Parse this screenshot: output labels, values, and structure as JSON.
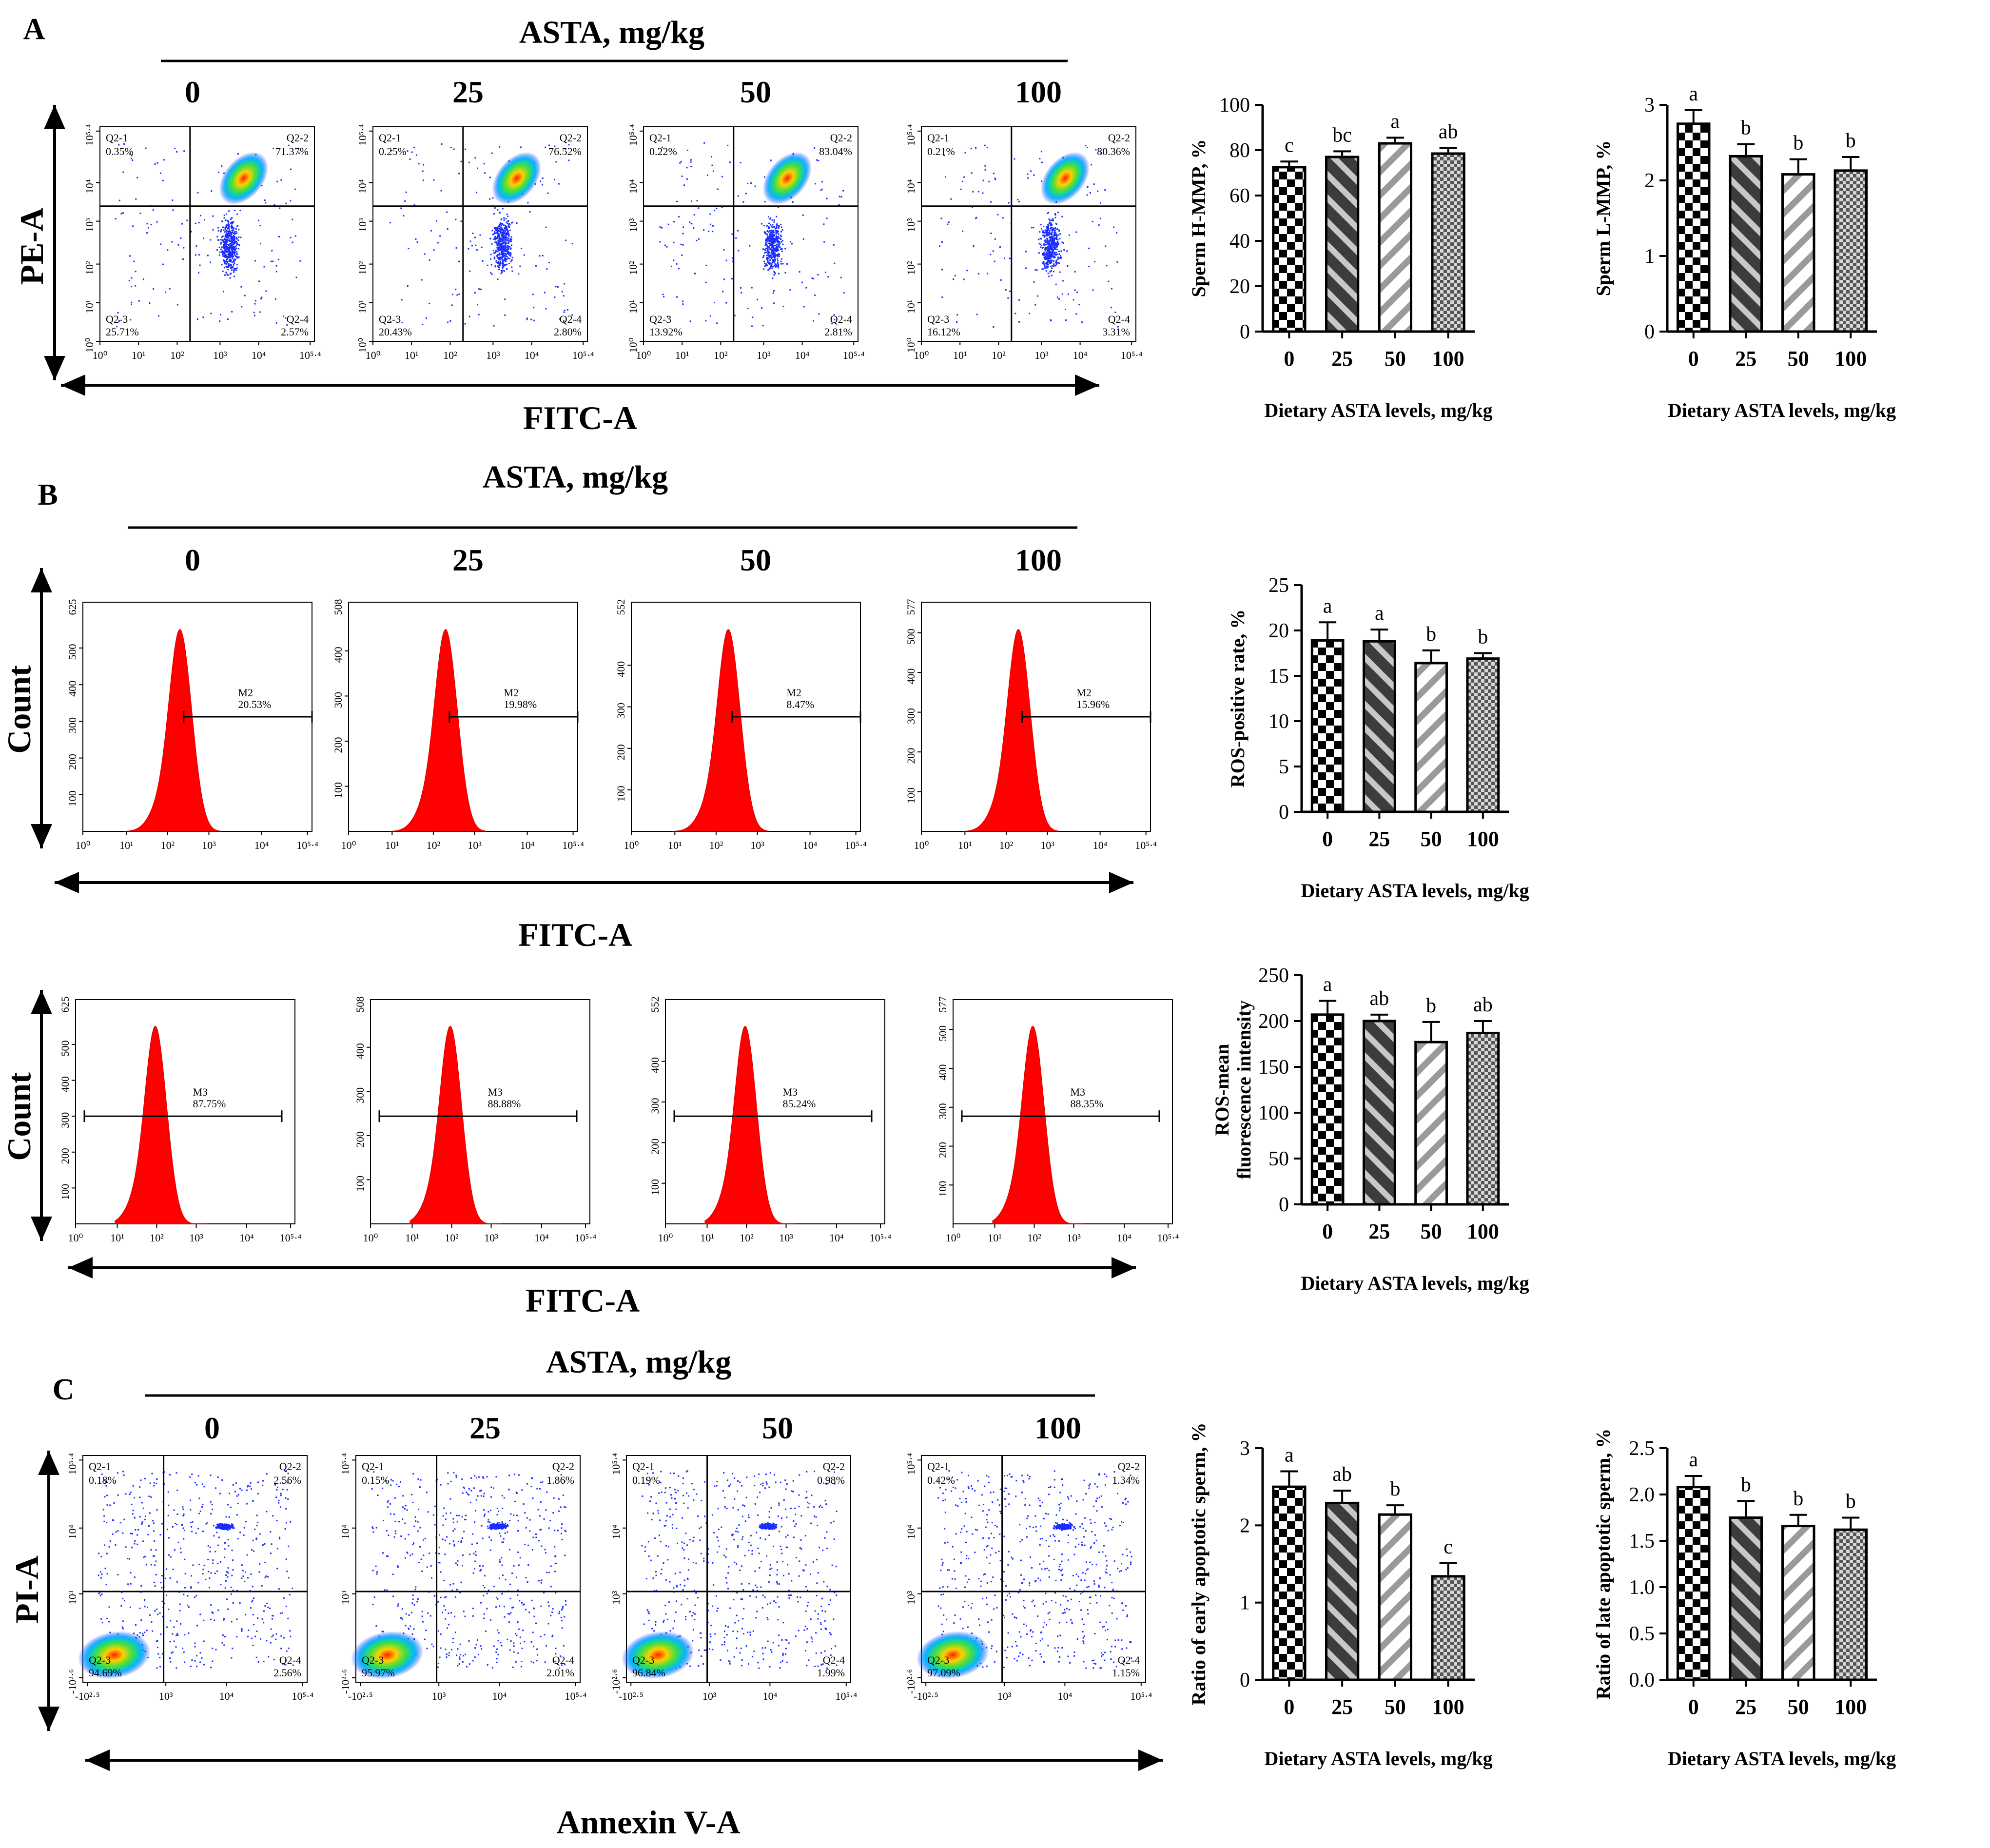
{
  "panel_labels": [
    "A",
    "B",
    "C"
  ],
  "header": "ASTA, mg/kg",
  "groups": [
    "0",
    "25",
    "50",
    "100"
  ],
  "axis_titles": {
    "pe": "PE-A",
    "fitc": "FITC-A",
    "count": "Count",
    "pi": "PI-A",
    "annexin": "Annexin V-A"
  },
  "scatter_ticks_A": {
    "x": [
      "10⁰",
      "10¹",
      "10²",
      "10³",
      "10⁴",
      "10⁵·⁴"
    ],
    "y": [
      "10⁰",
      "10¹",
      "10²",
      "10³",
      "10⁴",
      "10⁵·⁴"
    ]
  },
  "scatter_ticks_C": {
    "x": [
      "-10²·⁵",
      "10³",
      "10⁴",
      "10⁵·⁴"
    ],
    "y": [
      "-10²·⁶",
      "10³",
      "10⁴",
      "10⁵·⁴"
    ]
  },
  "hist_ticks_x": [
    "10⁰",
    "10¹",
    "10²",
    "10³",
    "10⁴",
    "10⁵·⁴"
  ],
  "flow_A": [
    {
      "q1": "0.35%",
      "q2": "71.37%",
      "q3": "25.71%",
      "q4": "2.57%"
    },
    {
      "q1": "0.25%",
      "q2": "76.52%",
      "q3": "20.43%",
      "q4": "2.80%"
    },
    {
      "q1": "0.22%",
      "q2": "83.04%",
      "q3": "13.92%",
      "q4": "2.81%"
    },
    {
      "q1": "0.21%",
      "q2": "80.36%",
      "q3": "16.12%",
      "q4": "3.31%"
    }
  ],
  "flow_C": [
    {
      "q1": "0.18%",
      "q2": "2.56%",
      "q3": "94.69%",
      "q4": "2.56%"
    },
    {
      "q1": "0.15%",
      "q2": "1.86%",
      "q3": "95.97%",
      "q4": "2.01%"
    },
    {
      "q1": "0.19%",
      "q2": "0.98%",
      "q3": "96.84%",
      "q4": "1.99%"
    },
    {
      "q1": "0.42%",
      "q2": "1.34%",
      "q3": "97.09%",
      "q4": "1.15%"
    }
  ],
  "quad_names": [
    "Q2-1",
    "Q2-2",
    "Q2-3",
    "Q2-4"
  ],
  "hist_B1": [
    {
      "ymax": "625",
      "gate": "M2",
      "pct": "20.53%",
      "yt": [
        "100",
        "200",
        "300",
        "400",
        "500"
      ]
    },
    {
      "ymax": "508",
      "gate": "M2",
      "pct": "19.98%",
      "yt": [
        "100",
        "200",
        "300",
        "400"
      ]
    },
    {
      "ymax": "552",
      "gate": "M2",
      "pct": "8.47%",
      "yt": [
        "100",
        "200",
        "300",
        "400"
      ]
    },
    {
      "ymax": "577",
      "gate": "M2",
      "pct": "15.96%",
      "yt": [
        "100",
        "200",
        "300",
        "400",
        "500"
      ]
    }
  ],
  "hist_B2": [
    {
      "ymax": "625",
      "gate": "M3",
      "pct": "87.75%",
      "yt": [
        "100",
        "200",
        "300",
        "400",
        "500"
      ]
    },
    {
      "ymax": "508",
      "gate": "M3",
      "pct": "88.88%",
      "yt": [
        "100",
        "200",
        "300",
        "400"
      ]
    },
    {
      "ymax": "552",
      "gate": "M3",
      "pct": "85.24%",
      "yt": [
        "100",
        "200",
        "300",
        "400"
      ]
    },
    {
      "ymax": "577",
      "gate": "M3",
      "pct": "88.35%",
      "yt": [
        "100",
        "200",
        "300",
        "400",
        "500"
      ]
    }
  ],
  "chart_data": [
    {
      "type": "bar",
      "id": "h_mmp",
      "categories": [
        "0",
        "25",
        "50",
        "100"
      ],
      "values": [
        72.5,
        77,
        83,
        78.5
      ],
      "errors": [
        2.5,
        2.5,
        2.5,
        2.5
      ],
      "letters": [
        "c",
        "bc",
        "a",
        "ab"
      ],
      "ylabel": "Sperm H-MMP,  %",
      "xlabel": "Dietary ASTA levels, mg/kg",
      "ylim": [
        0,
        100
      ],
      "yticks": [
        0,
        20,
        40,
        60,
        80,
        100
      ]
    },
    {
      "type": "bar",
      "id": "l_mmp",
      "categories": [
        "0",
        "25",
        "50",
        "100"
      ],
      "values": [
        2.75,
        2.32,
        2.08,
        2.13
      ],
      "errors": [
        0.18,
        0.16,
        0.2,
        0.18
      ],
      "letters": [
        "a",
        "b",
        "b",
        "b"
      ],
      "ylabel": "Sperm L-MMP, %",
      "xlabel": "Dietary ASTA levels, mg/kg",
      "ylim": [
        0,
        3
      ],
      "yticks": [
        0,
        1,
        2,
        3
      ]
    },
    {
      "type": "bar",
      "id": "ros_rate",
      "categories": [
        "0",
        "25",
        "50",
        "100"
      ],
      "values": [
        18.9,
        18.8,
        16.4,
        16.9
      ],
      "errors": [
        2,
        1.3,
        1.4,
        0.6
      ],
      "letters": [
        "a",
        "a",
        "b",
        "b"
      ],
      "ylabel": "ROS-positive rate, %",
      "xlabel": "Dietary ASTA levels, mg/kg",
      "ylim": [
        0,
        25
      ],
      "yticks": [
        0,
        5,
        10,
        15,
        20,
        25
      ]
    },
    {
      "type": "bar",
      "id": "ros_mfi",
      "categories": [
        "0",
        "25",
        "50",
        "100"
      ],
      "values": [
        207,
        200,
        177,
        187
      ],
      "errors": [
        15,
        7,
        22,
        13
      ],
      "letters": [
        "a",
        "ab",
        "b",
        "ab"
      ],
      "ylabel": "ROS-mean fluorescence intensity",
      "ylabel_lines": [
        "ROS-mean",
        "fluorescence intensity"
      ],
      "xlabel": "Dietary ASTA levels, mg/kg",
      "ylim": [
        0,
        250
      ],
      "yticks": [
        0,
        50,
        100,
        150,
        200,
        250
      ]
    },
    {
      "type": "bar",
      "id": "early_apop",
      "categories": [
        "0",
        "25",
        "50",
        "100"
      ],
      "values": [
        2.5,
        2.29,
        2.14,
        1.34
      ],
      "errors": [
        0.2,
        0.16,
        0.12,
        0.17
      ],
      "letters": [
        "a",
        "ab",
        "b",
        "c"
      ],
      "ylabel": "Ratio of early apoptotic sperm, %",
      "xlabel": "Dietary ASTA levels, mg/kg",
      "ylim": [
        0,
        3
      ],
      "yticks": [
        0,
        1,
        2,
        3
      ]
    },
    {
      "type": "bar",
      "id": "late_apop",
      "categories": [
        "0",
        "25",
        "50",
        "100"
      ],
      "values": [
        2.08,
        1.75,
        1.66,
        1.62
      ],
      "errors": [
        0.12,
        0.18,
        0.12,
        0.13
      ],
      "letters": [
        "a",
        "b",
        "b",
        "b"
      ],
      "ylabel": "Ratio of late apoptotic sperm, %",
      "xlabel": "Dietary ASTA levels, mg/kg",
      "ylim": [
        0,
        2.5
      ],
      "yticks": [
        "0.0",
        "0.5",
        "1.0",
        "1.5",
        "2.0",
        "2.5"
      ]
    }
  ]
}
